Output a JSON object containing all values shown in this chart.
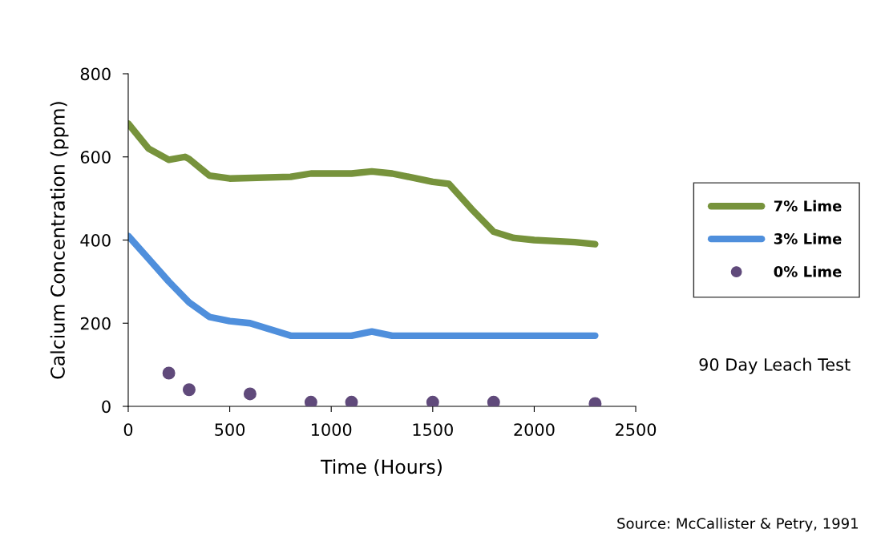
{
  "chart_data": {
    "type": "line",
    "xlabel": "Time (Hours)",
    "ylabel": "Calcium Concentration (ppm)",
    "xlim": [
      0,
      2500
    ],
    "xticks": [
      0,
      500,
      1000,
      1500,
      2000,
      2500
    ],
    "ylim": [
      0,
      800
    ],
    "yticks": [
      0,
      200,
      400,
      600,
      800
    ],
    "grid": false,
    "legend": "right",
    "marker": "none",
    "line_style": "solid",
    "series": [
      {
        "name": "7% Lime",
        "color": "#77933c",
        "x": [
          0,
          100,
          200,
          280,
          300,
          400,
          500,
          800,
          900,
          1100,
          1200,
          1300,
          1500,
          1580,
          1700,
          1800,
          1900,
          2000,
          2200,
          2300
        ],
        "values": [
          680,
          620,
          593,
          600,
          595,
          555,
          548,
          552,
          560,
          560,
          565,
          560,
          540,
          535,
          470,
          420,
          405,
          400,
          395,
          390
        ]
      },
      {
        "name": "3% Lime",
        "color": "#4f8fdc",
        "x": [
          0,
          100,
          200,
          300,
          400,
          500,
          600,
          700,
          800,
          900,
          1100,
          1200,
          1300,
          1500,
          2300
        ],
        "values": [
          410,
          355,
          300,
          250,
          215,
          205,
          200,
          185,
          170,
          170,
          170,
          180,
          170,
          170,
          170
        ]
      },
      {
        "name": "0% Lime",
        "type": "scatter",
        "marker": "circle",
        "color": "#604a7b",
        "x": [
          200,
          300,
          600,
          900,
          1100,
          1500,
          1800,
          2300
        ],
        "values": [
          80,
          40,
          30,
          10,
          10,
          10,
          10,
          7
        ]
      }
    ],
    "annotations": [
      "90 Day Leach Test",
      "Source: McCallister & Petry, 1991"
    ]
  }
}
